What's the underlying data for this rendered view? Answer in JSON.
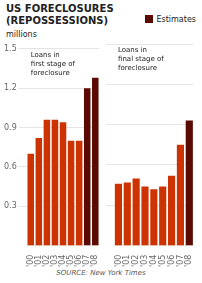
{
  "chart_data": [
    {
      "type": "bar",
      "title": [
        "US FORECLOSURES",
        "(REPOSSESSIONS)"
      ],
      "subtitle": "millions",
      "legend": "upper right",
      "annotations": [
        "Loans in",
        "first stage of",
        "foreclosure"
      ],
      "source": "SOURCE: New York Times",
      "categories": [
        "'00",
        "'01",
        "'02",
        "'03",
        "'04",
        "'05",
        "'06",
        "'07",
        "'08"
      ],
      "series": [
        {
          "color": "#CC3300",
          "values": [
            0.7,
            0.82,
            0.96,
            0.96,
            0.94,
            0.8,
            0.8,
            null,
            null
          ]
        },
        {
          "name": "Estimates",
          "color": "#5a0a00",
          "values": [
            null,
            null,
            null,
            null,
            null,
            null,
            null,
            1.2,
            1.28
          ]
        }
      ],
      "ylim": [
        0,
        1.5
      ],
      "yticks": [
        0.3,
        0.6,
        0.9,
        1.2,
        1.5
      ],
      "grid": true
    },
    {
      "type": "bar",
      "annotations": [
        "Loans in",
        "final stage of",
        "foreclosure"
      ],
      "categories": [
        "'00",
        "'01",
        "'02",
        "'03",
        "'04",
        "'05",
        "'06",
        "'07",
        "'08"
      ],
      "series": [
        {
          "color": "#CC3300",
          "values": [
            0.46,
            0.47,
            0.5,
            0.44,
            0.42,
            0.44,
            0.52,
            0.75,
            null
          ]
        },
        {
          "color": "#5a0a00",
          "values": [
            null,
            null,
            null,
            null,
            null,
            null,
            null,
            null,
            0.93
          ]
        }
      ],
      "ylim": [
        0,
        1.5
      ],
      "yticks": [
        0.3,
        0.6,
        0.9,
        1.2,
        1.5
      ],
      "grid": true,
      "tick_labels": "x"
    }
  ]
}
